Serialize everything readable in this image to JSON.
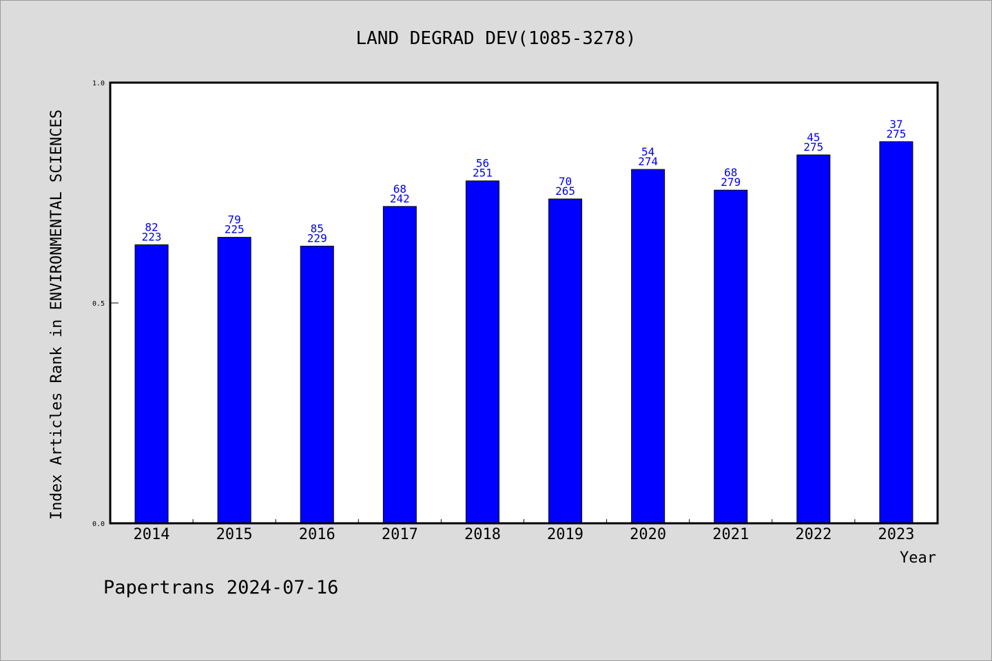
{
  "chart_data": {
    "type": "bar",
    "title": "LAND DEGRAD DEV(1085-3278)",
    "xlabel": "Year",
    "ylabel": "Index Articles Rank in ENVIRONMENTAL SCIENCES",
    "ylim": [
      0,
      1.0
    ],
    "yticks": [
      "0.0",
      "0.5",
      "1.0"
    ],
    "categories": [
      "2014",
      "2015",
      "2016",
      "2017",
      "2018",
      "2019",
      "2020",
      "2021",
      "2022",
      "2023"
    ],
    "values": [
      0.632,
      0.649,
      0.629,
      0.719,
      0.777,
      0.736,
      0.803,
      0.756,
      0.836,
      0.866
    ],
    "rank": [
      "82",
      "79",
      "85",
      "68",
      "56",
      "70",
      "54",
      "68",
      "45",
      "37"
    ],
    "total": [
      "223",
      "225",
      "229",
      "242",
      "251",
      "265",
      "274",
      "279",
      "275",
      "275"
    ],
    "bar_color": "#0000ff",
    "label_color": "#0000ee",
    "grid": false,
    "legend": "none"
  },
  "footer": "Papertrans 2024-07-16"
}
